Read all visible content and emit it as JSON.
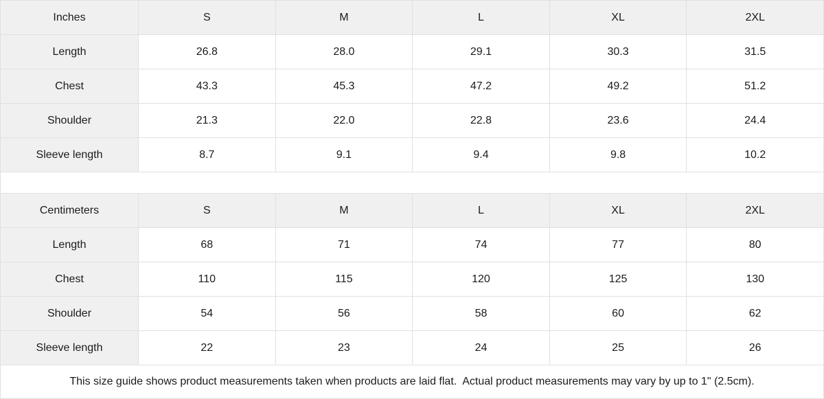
{
  "theme": {
    "page_bg": "#ffffff",
    "header_bg": "#f0f0f0",
    "border_color": "#e0e0e0",
    "text_color": "#1b1b1b"
  },
  "tables": [
    {
      "unit_label": "Inches",
      "size_headers": [
        "S",
        "M",
        "L",
        "XL",
        "2XL"
      ],
      "rows": [
        {
          "label": "Length",
          "values": [
            "26.8",
            "28.0",
            "29.1",
            "30.3",
            "31.5"
          ]
        },
        {
          "label": "Chest",
          "values": [
            "43.3",
            "45.3",
            "47.2",
            "49.2",
            "51.2"
          ]
        },
        {
          "label": "Shoulder",
          "values": [
            "21.3",
            "22.0",
            "22.8",
            "23.6",
            "24.4"
          ]
        },
        {
          "label": "Sleeve length",
          "values": [
            "8.7",
            "9.1",
            "9.4",
            "9.8",
            "10.2"
          ]
        }
      ]
    },
    {
      "unit_label": "Centimeters",
      "size_headers": [
        "S",
        "M",
        "L",
        "XL",
        "2XL"
      ],
      "rows": [
        {
          "label": "Length",
          "values": [
            "68",
            "71",
            "74",
            "77",
            "80"
          ]
        },
        {
          "label": "Chest",
          "values": [
            "110",
            "115",
            "120",
            "125",
            "130"
          ]
        },
        {
          "label": "Shoulder",
          "values": [
            "54",
            "56",
            "58",
            "60",
            "62"
          ]
        },
        {
          "label": "Sleeve length",
          "values": [
            "22",
            "23",
            "24",
            "25",
            "26"
          ]
        }
      ]
    }
  ],
  "footer": {
    "note": "This size guide shows product measurements taken when products are laid flat.  Actual product measurements may vary by up to 1\" (2.5cm)."
  }
}
